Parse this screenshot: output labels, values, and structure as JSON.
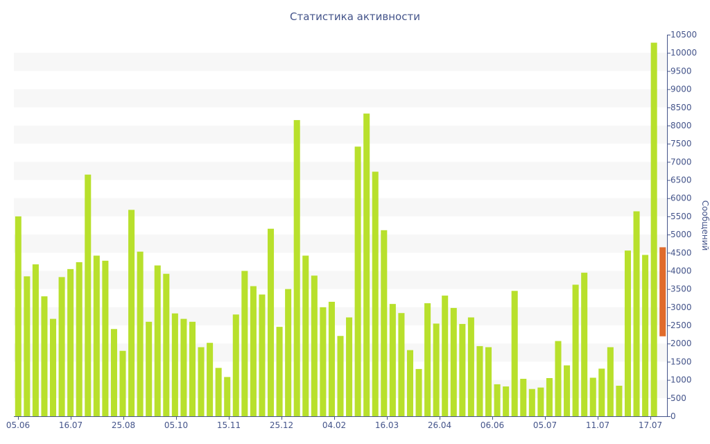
{
  "chart_data": {
    "type": "bar",
    "title": "Статистика активности",
    "xlabel": "",
    "ylabel": "Сообщений",
    "ylim": [
      0,
      10500
    ],
    "y_ticks": [
      0,
      500,
      1000,
      1500,
      2000,
      2500,
      3000,
      3500,
      4000,
      4500,
      5000,
      5500,
      6000,
      6500,
      7000,
      7500,
      8000,
      8500,
      9000,
      9500,
      10000,
      10500
    ],
    "x_tick_labels": [
      "05.06",
      "16.07",
      "25.08",
      "05.10",
      "15.11",
      "25.12",
      "04.02",
      "16.03",
      "26.04",
      "06.06",
      "05.07",
      "11.07",
      "17.07"
    ],
    "grid": "alternating horizontal bands",
    "legend": "none",
    "colors": {
      "bar": "#b8e02c",
      "last_bar": "#e06b2c",
      "band": "#f7f7f7",
      "text": "#44548a"
    },
    "values": [
      5500,
      3850,
      4180,
      3300,
      2680,
      3830,
      4050,
      4240,
      6650,
      4420,
      4280,
      2400,
      1800,
      5680,
      4530,
      2600,
      4150,
      3920,
      2830,
      2680,
      2600,
      1900,
      2020,
      1330,
      1080,
      2800,
      4000,
      3580,
      3350,
      5160,
      2460,
      3500,
      8150,
      4420,
      3870,
      3000,
      3150,
      2210,
      2720,
      7420,
      8330,
      6730,
      5120,
      3090,
      2840,
      1820,
      1300,
      3110,
      2550,
      3320,
      2980,
      2540,
      2720,
      1930,
      1900,
      880,
      820,
      3450,
      1030,
      750,
      790,
      1050,
      2070,
      1400,
      3620,
      3950,
      1060,
      1310,
      1900,
      840,
      4560,
      5640,
      4440,
      10280,
      4650
    ],
    "last_bar_range": [
      2200,
      4650
    ]
  }
}
